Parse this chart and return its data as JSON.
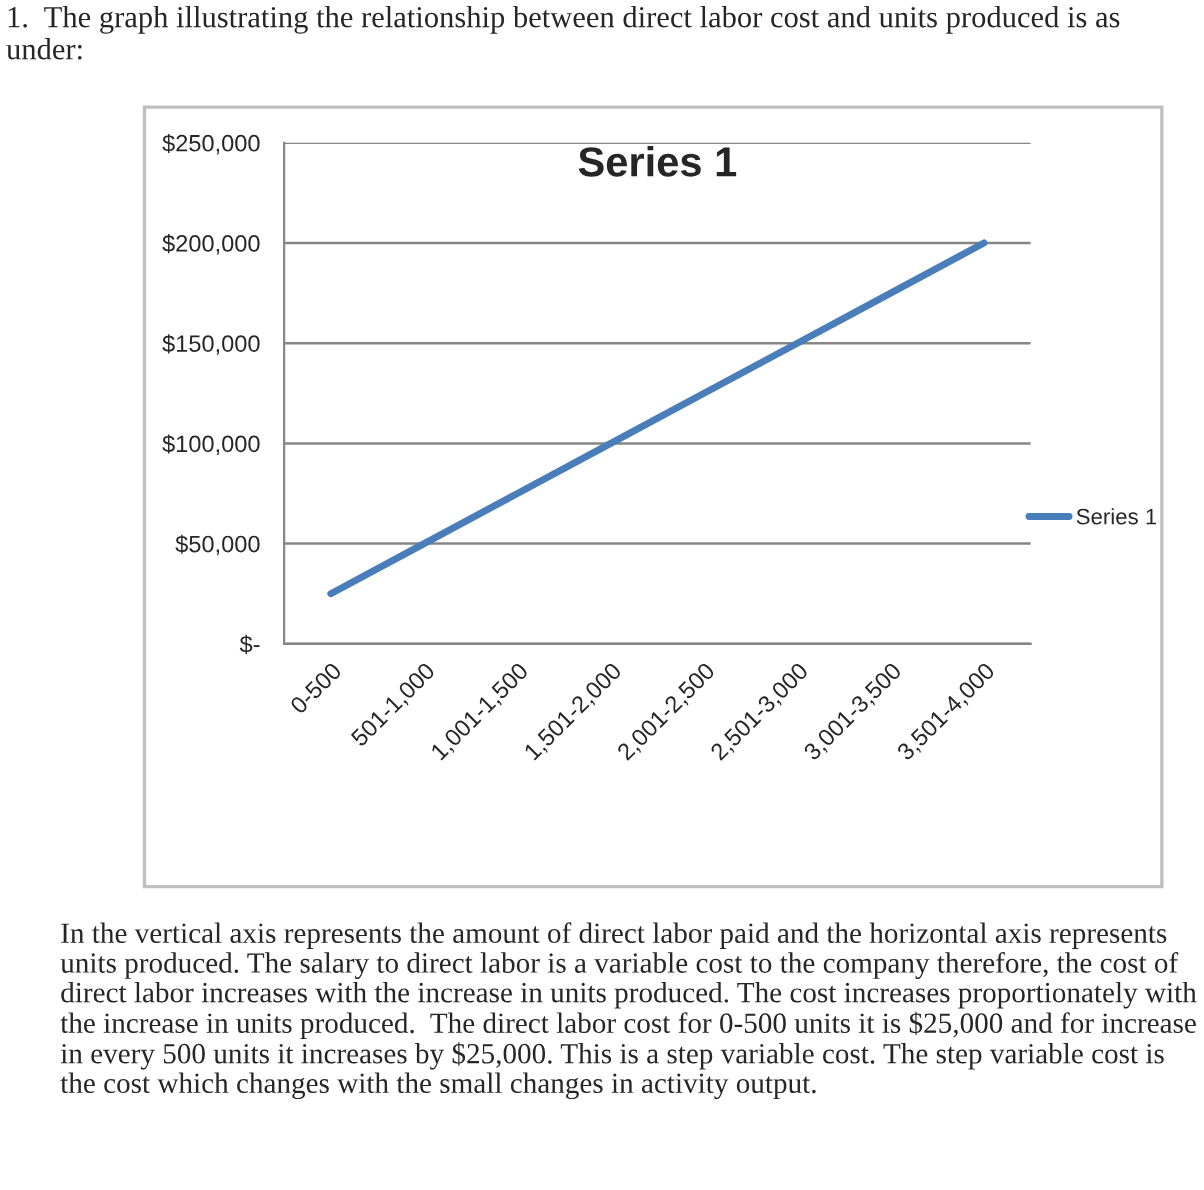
{
  "chart_data": {
    "type": "line",
    "title": "Series 1",
    "categories": [
      "0-500",
      "501-1,000",
      "1,001-1,500",
      "1,501-2,000",
      "2,001-2,500",
      "2,501-3,000",
      "3,001-3,500",
      "3,501-4,000"
    ],
    "series": [
      {
        "name": "Series 1",
        "color": "#4a7ebb",
        "values": [
          25000,
          50000,
          75000,
          100000,
          125000,
          150000,
          175000,
          200000
        ]
      }
    ],
    "ylim": [
      0,
      250000
    ],
    "yticks": [
      {
        "value": 0,
        "label": "$-"
      },
      {
        "value": 50000,
        "label": "$50,000"
      },
      {
        "value": 100000,
        "label": "$100,000"
      },
      {
        "value": 150000,
        "label": "$150,000"
      },
      {
        "value": 200000,
        "label": "$200,000"
      },
      {
        "value": 250000,
        "label": "$250,000"
      }
    ],
    "grid": "y",
    "legend": "right",
    "marker": "none",
    "line_style": "solid",
    "annotations": [
      "1.  The graph illustrating the relationship between direct labor cost and units produced is as under:",
      "In the vertical axis represents the amount of direct labor paid and the horizontal axis represents units produced. The salary to direct labor is a variable cost to the company therefore, the cost of direct labor increases with the increase in units produced. The cost increases proportionately with the increase in units produced.  The direct labor cost for 0-500 units it is $25,000 and for increase in every 500 units it increases by $25,000. This is a step variable cost. The step variable cost is the cost which changes with the small changes in activity output."
    ]
  }
}
